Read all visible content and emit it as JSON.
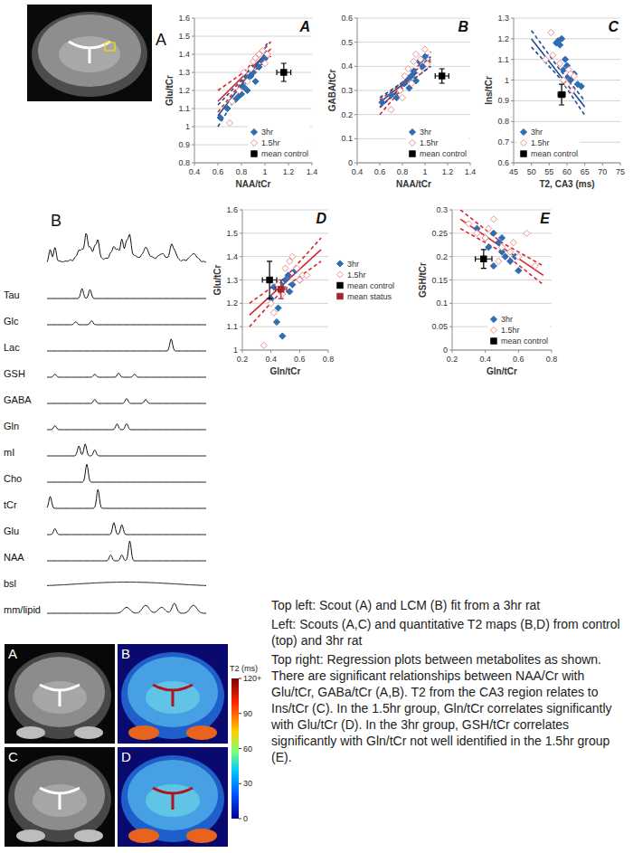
{
  "chart_data": [
    {
      "type": "scatter",
      "panel": "A",
      "x_label": "NAA/tCr",
      "y_label": "Glu/tCr",
      "xlim": [
        0.4,
        1.4
      ],
      "xticks": [
        0.4,
        0.6,
        0.8,
        1,
        1.2,
        1.4
      ],
      "ylim": [
        0.8,
        1.6
      ],
      "yticks": [
        0.8,
        0.9,
        1,
        1.1,
        1.2,
        1.3,
        1.4,
        1.5,
        1.6
      ],
      "grid": true,
      "legend": "lower-right",
      "series": [
        {
          "name": "3hr",
          "color": "#2e6db4",
          "marker": "diamond",
          "x": [
            0.62,
            0.68,
            0.75,
            0.78,
            0.8,
            0.82,
            0.85,
            0.85,
            0.88,
            0.9,
            0.92,
            0.95,
            0.98,
            1.0
          ],
          "values": [
            1.05,
            1.1,
            1.15,
            1.17,
            1.18,
            1.22,
            1.2,
            1.27,
            1.28,
            1.3,
            1.25,
            1.33,
            1.36,
            1.38
          ]
        },
        {
          "name": "1.5hr",
          "color": "#f28e8e",
          "marker": "open-diamond",
          "x": [
            0.7,
            0.72,
            0.78,
            0.82,
            0.85,
            0.88,
            0.9,
            0.92,
            0.95,
            0.98,
            1.0,
            1.02
          ],
          "values": [
            1.02,
            1.14,
            1.2,
            1.3,
            1.25,
            1.32,
            1.36,
            1.38,
            1.4,
            1.42,
            1.35,
            1.4
          ]
        },
        {
          "name": "mean control",
          "color": "#000000",
          "marker": "square",
          "x": [
            1.16
          ],
          "values": [
            1.3
          ],
          "x_error": [
            0.06
          ],
          "y_error": [
            0.05
          ]
        },
        {
          "type": "line",
          "color": "#d9262b",
          "line_style": "solid",
          "x": [
            0.6,
            1.05
          ],
          "values": [
            1.14,
            1.43
          ]
        },
        {
          "type": "line",
          "color": "#d9262b",
          "line_style": "dashed",
          "x": [
            0.6,
            0.82,
            1.05
          ],
          "values": [
            1.2,
            1.3,
            1.47
          ]
        },
        {
          "type": "line",
          "color": "#d9262b",
          "line_style": "dashed",
          "x": [
            0.6,
            0.82,
            1.05
          ],
          "values": [
            1.08,
            1.26,
            1.39
          ]
        },
        {
          "type": "line",
          "color": "#1f4e8c",
          "line_style": "solid",
          "x": [
            0.6,
            1.02
          ],
          "values": [
            1.06,
            1.42
          ]
        },
        {
          "type": "line",
          "color": "#1f4e8c",
          "line_style": "dashed",
          "x": [
            0.6,
            0.82,
            1.02
          ],
          "values": [
            1.12,
            1.27,
            1.46
          ]
        },
        {
          "type": "line",
          "color": "#1f4e8c",
          "line_style": "dashed",
          "x": [
            0.6,
            0.82,
            1.02
          ],
          "values": [
            1.0,
            1.23,
            1.38
          ]
        }
      ]
    },
    {
      "type": "scatter",
      "panel": "B",
      "x_label": "NAA/tCr",
      "y_label": "GABA/tCr",
      "xlim": [
        0.4,
        1.4
      ],
      "xticks": [
        0.4,
        0.6,
        0.8,
        1,
        1.2,
        1.4
      ],
      "ylim": [
        0,
        0.6
      ],
      "yticks": [
        0,
        0.1,
        0.2,
        0.3,
        0.4,
        0.5,
        0.6
      ],
      "grid": true,
      "legend": "lower-right",
      "series": [
        {
          "name": "3hr",
          "color": "#2e6db4",
          "marker": "diamond",
          "x": [
            0.62,
            0.7,
            0.75,
            0.78,
            0.82,
            0.85,
            0.86,
            0.88,
            0.9,
            0.92,
            0.95,
            0.98,
            1.0
          ],
          "values": [
            0.25,
            0.28,
            0.27,
            0.3,
            0.33,
            0.35,
            0.31,
            0.36,
            0.38,
            0.34,
            0.42,
            0.4,
            0.44
          ]
        },
        {
          "name": "1.5hr",
          "color": "#f28e8e",
          "marker": "open-diamond",
          "x": [
            0.7,
            0.78,
            0.8,
            0.82,
            0.85,
            0.88,
            0.9,
            0.92,
            0.95,
            0.96,
            1.0,
            1.02
          ],
          "values": [
            0.22,
            0.3,
            0.27,
            0.36,
            0.39,
            0.33,
            0.42,
            0.45,
            0.38,
            0.43,
            0.47,
            0.41
          ]
        },
        {
          "name": "mean control",
          "color": "#000000",
          "marker": "square",
          "x": [
            1.15
          ],
          "values": [
            0.36
          ],
          "x_error": [
            0.06
          ],
          "y_error": [
            0.03
          ]
        },
        {
          "type": "line",
          "color": "#d9262b",
          "line_style": "solid",
          "x": [
            0.6,
            1.05
          ],
          "values": [
            0.23,
            0.43
          ]
        },
        {
          "type": "line",
          "color": "#d9262b",
          "line_style": "dashed",
          "x": [
            0.6,
            0.82,
            1.05
          ],
          "values": [
            0.26,
            0.34,
            0.46
          ]
        },
        {
          "type": "line",
          "color": "#d9262b",
          "line_style": "dashed",
          "x": [
            0.6,
            0.82,
            1.05
          ],
          "values": [
            0.2,
            0.32,
            0.4
          ]
        },
        {
          "type": "line",
          "color": "#1f4e8c",
          "line_style": "solid",
          "x": [
            0.6,
            1.05
          ],
          "values": [
            0.25,
            0.42
          ]
        },
        {
          "type": "line",
          "color": "#1f4e8c",
          "line_style": "dashed",
          "x": [
            0.6,
            0.82,
            1.05
          ],
          "values": [
            0.27,
            0.34,
            0.44
          ]
        },
        {
          "type": "line",
          "color": "#1f4e8c",
          "line_style": "dashed",
          "x": [
            0.6,
            0.82,
            1.05
          ],
          "values": [
            0.23,
            0.32,
            0.4
          ]
        }
      ]
    },
    {
      "type": "scatter",
      "panel": "C",
      "x_label": "T2, CA3 (ms)",
      "y_label": "Ins/tCr",
      "xlim": [
        45,
        75
      ],
      "xticks": [
        45,
        50,
        55,
        60,
        65,
        70,
        75
      ],
      "ylim": [
        0.6,
        1.3
      ],
      "yticks": [
        0.6,
        0.7,
        0.8,
        0.9,
        1,
        1.1,
        1.2,
        1.3
      ],
      "grid": true,
      "legend": "lower-left",
      "series": [
        {
          "name": "3hr",
          "color": "#2e6db4",
          "marker": "diamond",
          "x": [
            57,
            57.5,
            58,
            58.5,
            59,
            59.5,
            60,
            60.5,
            61,
            62,
            63,
            64
          ],
          "values": [
            1.18,
            1.19,
            1.17,
            1.2,
            1.05,
            1.1,
            1.07,
            1.02,
            1.0,
            1.03,
            0.98,
            0.97
          ]
        },
        {
          "name": "1.5hr",
          "color": "#f28e8e",
          "marker": "open-diamond",
          "x": [
            54,
            55.5,
            56,
            58,
            59,
            60,
            60.5,
            61,
            61.5,
            62
          ],
          "values": [
            1.1,
            1.23,
            1.12,
            1.08,
            1.0,
            0.98,
            1.05,
            1.03,
            0.95,
            1.02
          ]
        },
        {
          "name": "mean control",
          "color": "#000000",
          "marker": "square",
          "x": [
            58.5
          ],
          "values": [
            0.93
          ],
          "x_error": [
            1
          ],
          "y_error": [
            0.05
          ]
        },
        {
          "type": "line",
          "color": "#1f4e8c",
          "line_style": "solid",
          "x": [
            50,
            65
          ],
          "values": [
            1.2,
            0.87
          ]
        },
        {
          "type": "line",
          "color": "#1f4e8c",
          "line_style": "dashed",
          "x": [
            50,
            58,
            65
          ],
          "values": [
            1.24,
            1.05,
            0.9
          ]
        },
        {
          "type": "line",
          "color": "#1f4e8c",
          "line_style": "dashed",
          "x": [
            50,
            58,
            65
          ],
          "values": [
            1.16,
            1.01,
            0.83
          ]
        }
      ]
    },
    {
      "type": "scatter",
      "panel": "D",
      "x_label": "Gln/tCr",
      "y_label": "Glu/tCr",
      "xlim": [
        0.2,
        0.8
      ],
      "xticks": [
        0.2,
        0.4,
        0.6,
        0.8
      ],
      "ylim": [
        1,
        1.6
      ],
      "yticks": [
        1,
        1.1,
        1.2,
        1.3,
        1.4,
        1.5,
        1.6
      ],
      "grid": true,
      "legend": "right",
      "series": [
        {
          "name": "3hr",
          "color": "#2e6db4",
          "marker": "diamond",
          "x": [
            0.4,
            0.42,
            0.44,
            0.45,
            0.47,
            0.48,
            0.5,
            0.52,
            0.53,
            0.55,
            0.57,
            0.6
          ],
          "values": [
            1.22,
            1.27,
            1.12,
            1.18,
            1.28,
            1.06,
            1.3,
            1.32,
            1.25,
            1.28,
            1.34,
            1.3
          ]
        },
        {
          "name": "1.5hr",
          "color": "#f28e8e",
          "marker": "open-diamond",
          "x": [
            0.35,
            0.4,
            0.42,
            0.45,
            0.48,
            0.5,
            0.53,
            0.55,
            0.58,
            0.6,
            0.62,
            0.65
          ],
          "values": [
            1.02,
            1.2,
            1.16,
            1.28,
            1.24,
            1.35,
            1.38,
            1.4,
            1.35,
            1.3,
            1.32,
            1.32
          ]
        },
        {
          "name": "mean control",
          "color": "#000000",
          "marker": "square",
          "x": [
            0.39
          ],
          "values": [
            1.3
          ],
          "x_error": [
            0.05
          ],
          "y_error": [
            0.08
          ]
        },
        {
          "name": "mean status",
          "color": "#a0282d",
          "marker": "square",
          "x": [
            0.47
          ],
          "values": [
            1.26
          ],
          "x_error": [
            0.04
          ],
          "y_error": [
            0.04
          ]
        },
        {
          "type": "line",
          "color": "#d9262b",
          "line_style": "solid",
          "x": [
            0.25,
            0.75
          ],
          "values": [
            1.15,
            1.43
          ]
        },
        {
          "type": "line",
          "color": "#d9262b",
          "line_style": "dashed",
          "x": [
            0.25,
            0.5,
            0.75
          ],
          "values": [
            1.2,
            1.31,
            1.48
          ]
        },
        {
          "type": "line",
          "color": "#d9262b",
          "line_style": "dashed",
          "x": [
            0.25,
            0.5,
            0.75
          ],
          "values": [
            1.1,
            1.27,
            1.38
          ]
        }
      ]
    },
    {
      "type": "scatter",
      "panel": "E",
      "x_label": "Gln/tCr",
      "y_label": "GSH/tCr",
      "xlim": [
        0.2,
        0.8
      ],
      "xticks": [
        0.2,
        0.4,
        0.6,
        0.8
      ],
      "ylim": [
        0,
        0.3
      ],
      "yticks": [
        0,
        0.05,
        0.1,
        0.15,
        0.2,
        0.25,
        0.3
      ],
      "grid": true,
      "legend": "lower-right",
      "series": [
        {
          "name": "3hr",
          "color": "#2e6db4",
          "marker": "diamond",
          "x": [
            0.35,
            0.4,
            0.42,
            0.45,
            0.45,
            0.48,
            0.5,
            0.5,
            0.52,
            0.55,
            0.58,
            0.6
          ],
          "values": [
            0.26,
            0.24,
            0.22,
            0.25,
            0.18,
            0.23,
            0.21,
            0.24,
            0.2,
            0.19,
            0.2,
            0.17
          ]
        },
        {
          "name": "1.5hr",
          "color": "#f28e8e",
          "marker": "open-diamond",
          "x": [
            0.3,
            0.35,
            0.4,
            0.42,
            0.45,
            0.48,
            0.5,
            0.55,
            0.57,
            0.6,
            0.65,
            0.7
          ],
          "values": [
            0.27,
            0.25,
            0.24,
            0.26,
            0.28,
            0.19,
            0.22,
            0.21,
            0.23,
            0.2,
            0.25,
            0.18
          ]
        },
        {
          "name": "mean control",
          "color": "#000000",
          "marker": "square",
          "x": [
            0.39
          ],
          "values": [
            0.195
          ],
          "x_error": [
            0.05
          ],
          "y_error": [
            0.02
          ]
        },
        {
          "type": "line",
          "color": "#d9262b",
          "line_style": "solid",
          "x": [
            0.25,
            0.75
          ],
          "values": [
            0.28,
            0.16
          ]
        },
        {
          "type": "line",
          "color": "#d9262b",
          "line_style": "dashed",
          "x": [
            0.25,
            0.5,
            0.75
          ],
          "values": [
            0.3,
            0.23,
            0.18
          ]
        },
        {
          "type": "line",
          "color": "#d9262b",
          "line_style": "dashed",
          "x": [
            0.25,
            0.5,
            0.75
          ],
          "values": [
            0.26,
            0.21,
            0.14
          ]
        }
      ]
    }
  ],
  "scout": {
    "label": "A"
  },
  "spectrum": {
    "label": "B",
    "components": [
      "Tau",
      "Glc",
      "Lac",
      "GSH",
      "GABA",
      "Gln",
      "mI",
      "Cho",
      "tCr",
      "Glu",
      "NAA",
      "bsl",
      "mm/lipid"
    ]
  },
  "mri_maps": {
    "panels": [
      "A",
      "B",
      "C",
      "D"
    ],
    "colorbar": {
      "title": "T2 (ms)",
      "range": [
        0,
        120
      ],
      "ticks": [
        0,
        30,
        60,
        90,
        {
          "value": 120,
          "label": "120+"
        }
      ]
    }
  },
  "caption": [
    "Top left: Scout (A) and LCM (B) fit from a 3hr rat",
    "Left: Scouts (A,C) and quantitative T2 maps (B,D) from control (top) and 3hr rat",
    "Top right: Regression plots between metabolites as shown. There are significant relationships between NAA/Cr with Glu/tCr, GABa/tCr (A,B). T2 from the CA3 region relates to Ins/tCr (C). In the 1.5hr group, Gln/tCr correlates significantly with Glu/tCr (D). In the 3hr group, GSH/tCr correlates significantly with Gln/tCr not well identified in the 1.5hr group (E)."
  ]
}
